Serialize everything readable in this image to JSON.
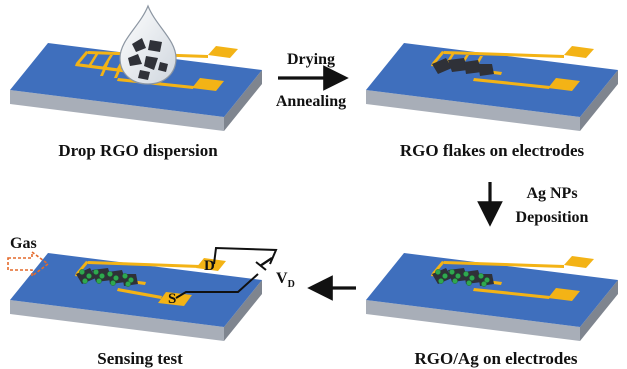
{
  "panels": [
    {
      "caption": "Drop RGO dispersion"
    },
    {
      "caption": "RGO flakes on electrodes"
    },
    {
      "caption": "RGO/Ag on electrodes"
    },
    {
      "caption": "Sensing test"
    }
  ],
  "steps": {
    "drying": "Drying",
    "annealing": "Annealing",
    "ag_nps": "Ag NPs",
    "deposition": "Deposition"
  },
  "sensing": {
    "gas_label": "Gas",
    "drain_label": "D",
    "source_label": "S",
    "voltage_label": "V",
    "voltage_subscript": "D"
  },
  "colors": {
    "substrate_top": "#3f6fbd",
    "substrate_front": "#a8aeb8",
    "substrate_side": "#7f858f",
    "electrode": "#f3b316",
    "rgo_flake": "#2f3138",
    "ag_particle": "#2fa84f",
    "gas_arrow": "#e46a2c"
  }
}
